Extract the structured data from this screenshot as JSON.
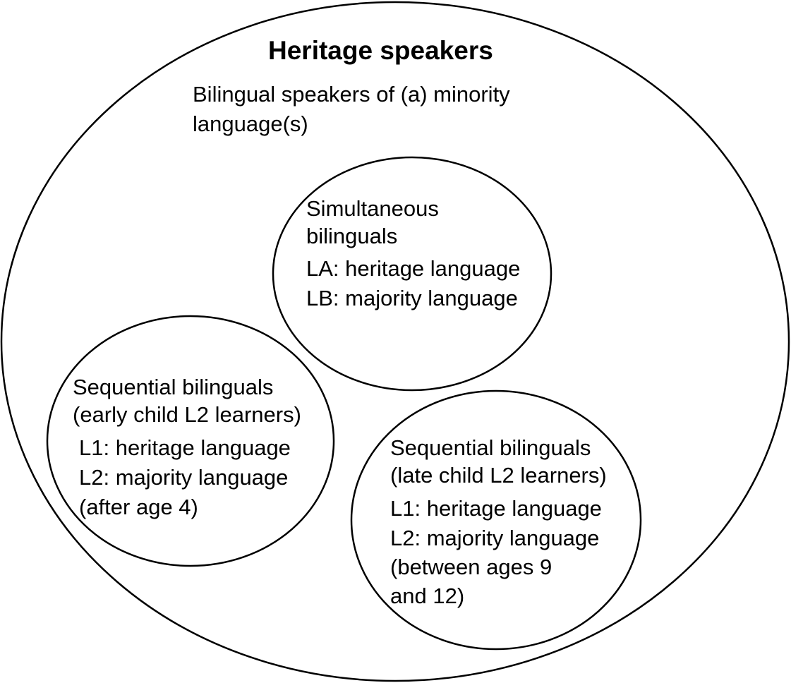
{
  "outer": {
    "title": "Heritage speakers",
    "description_lines": [
      "Bilingual speakers of (a) minority",
      "language(s)"
    ]
  },
  "simultaneous": {
    "heading_lines": [
      "Simultaneous",
      "bilinguals"
    ],
    "la": "LA: heritage language",
    "lb": "LB: majority language"
  },
  "early": {
    "heading_lines": [
      "Sequential bilinguals",
      "(early child L2 learners)"
    ],
    "l1": "L1: heritage language",
    "l2_lines": [
      "L2: majority language",
      "(after age 4)"
    ]
  },
  "late": {
    "heading_lines": [
      "Sequential bilinguals",
      "(late child L2 learners)"
    ],
    "l1": "L1: heritage language",
    "l2_lines": [
      "L2: majority language",
      "(between ages 9",
      "and 12)"
    ]
  }
}
